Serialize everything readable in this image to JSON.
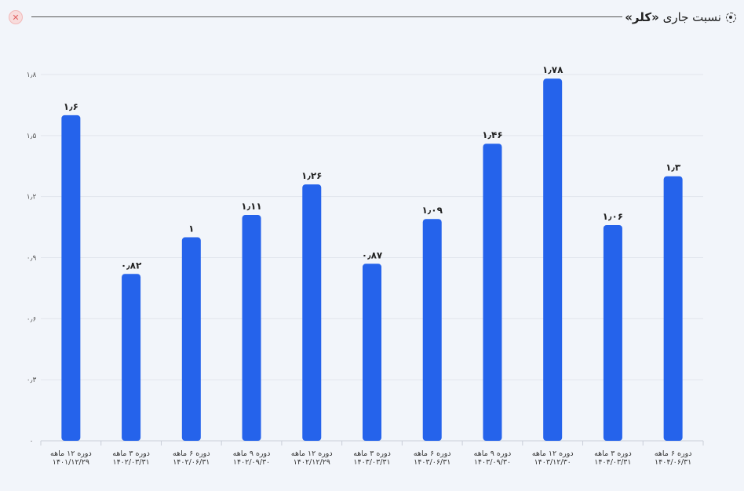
{
  "header": {
    "close_icon": "close-icon",
    "settings_icon": "dashed-circle-icon",
    "title_prefix": "نسبت جاری",
    "title_company": "«کلر»"
  },
  "chart_data": {
    "type": "bar",
    "title": "نسبت جاری «کلر»",
    "xlabel": "",
    "ylabel": "",
    "ylim": [
      0,
      1.8
    ],
    "yticks": [
      0,
      0.3,
      0.6,
      0.9,
      1.2,
      1.5,
      1.8
    ],
    "ytick_labels": [
      "۰",
      "۰٫۳",
      "۰٫۶",
      "۰٫۹",
      "۱٫۲",
      "۱٫۵",
      "۱٫۸"
    ],
    "grid": true,
    "bar_color": "#2563eb",
    "categories": [
      {
        "period": "دوره ۱۲ ماهه",
        "date": "۱۴۰۱/۱۲/۲۹"
      },
      {
        "period": "دوره ۳ ماهه",
        "date": "۱۴۰۲/۰۳/۳۱"
      },
      {
        "period": "دوره ۶ ماهه",
        "date": "۱۴۰۲/۰۶/۳۱"
      },
      {
        "period": "دوره ۹ ماهه",
        "date": "۱۴۰۲/۰۹/۳۰"
      },
      {
        "period": "دوره ۱۲ ماهه",
        "date": "۱۴۰۲/۱۲/۲۹"
      },
      {
        "period": "دوره ۳ ماهه",
        "date": "۱۴۰۳/۰۳/۳۱"
      },
      {
        "period": "دوره ۶ ماهه",
        "date": "۱۴۰۳/۰۶/۳۱"
      },
      {
        "period": "دوره ۹ ماهه",
        "date": "۱۴۰۳/۰۹/۳۰"
      },
      {
        "period": "دوره ۱۲ ماهه",
        "date": "۱۴۰۳/۱۲/۳۰"
      },
      {
        "period": "دوره ۳ ماهه",
        "date": "۱۴۰۴/۰۳/۳۱"
      },
      {
        "period": "دوره ۶ ماهه",
        "date": "۱۴۰۴/۰۶/۳۱"
      }
    ],
    "values": [
      1.6,
      0.82,
      1,
      1.11,
      1.26,
      0.87,
      1.09,
      1.46,
      1.78,
      1.06,
      1.3
    ],
    "value_labels": [
      "۱٫۶",
      "۰٫۸۲",
      "۱",
      "۱٫۱۱",
      "۱٫۲۶",
      "۰٫۸۷",
      "۱٫۰۹",
      "۱٫۴۶",
      "۱٫۷۸",
      "۱٫۰۶",
      "۱٫۳"
    ]
  }
}
